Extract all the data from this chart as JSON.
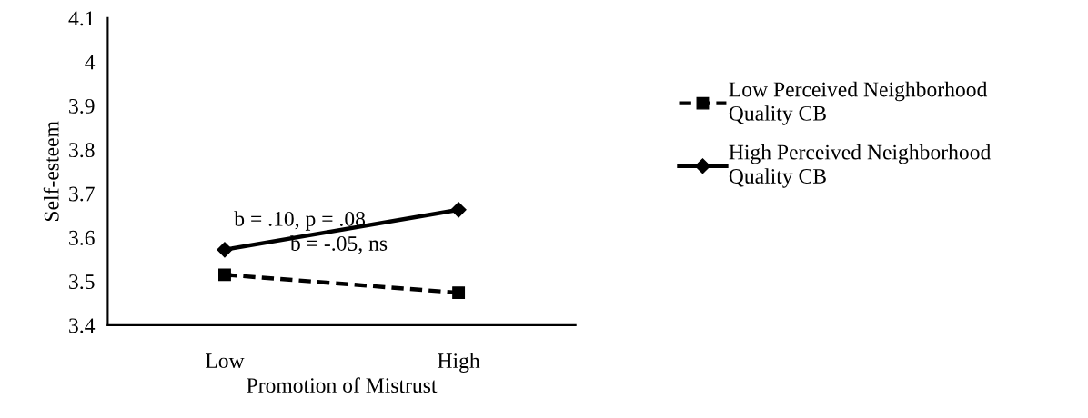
{
  "chart_data": {
    "type": "line",
    "xlabel": "Promotion of Mistrust",
    "ylabel": "Self-esteem",
    "categories": [
      "Low",
      "High"
    ],
    "series": [
      {
        "name": "Low Perceived Neighborhood Quality CB",
        "color": "#000000",
        "values": [
          3.515,
          3.474
        ],
        "marker": "square",
        "line_style": "dashed"
      },
      {
        "name": "High Perceived Neighborhood Quality CB",
        "color": "#000000",
        "values": [
          3.572,
          3.663
        ],
        "marker": "diamond",
        "line_style": "solid"
      }
    ],
    "ylim": [
      3.4,
      4.1
    ],
    "yticks": [
      3.4,
      3.5,
      3.6,
      3.7,
      3.8,
      3.9,
      4,
      4.1
    ],
    "annotations": [
      "b = .10, p = .08",
      "b = -.05, ns"
    ],
    "grid": false,
    "legend": "right"
  }
}
